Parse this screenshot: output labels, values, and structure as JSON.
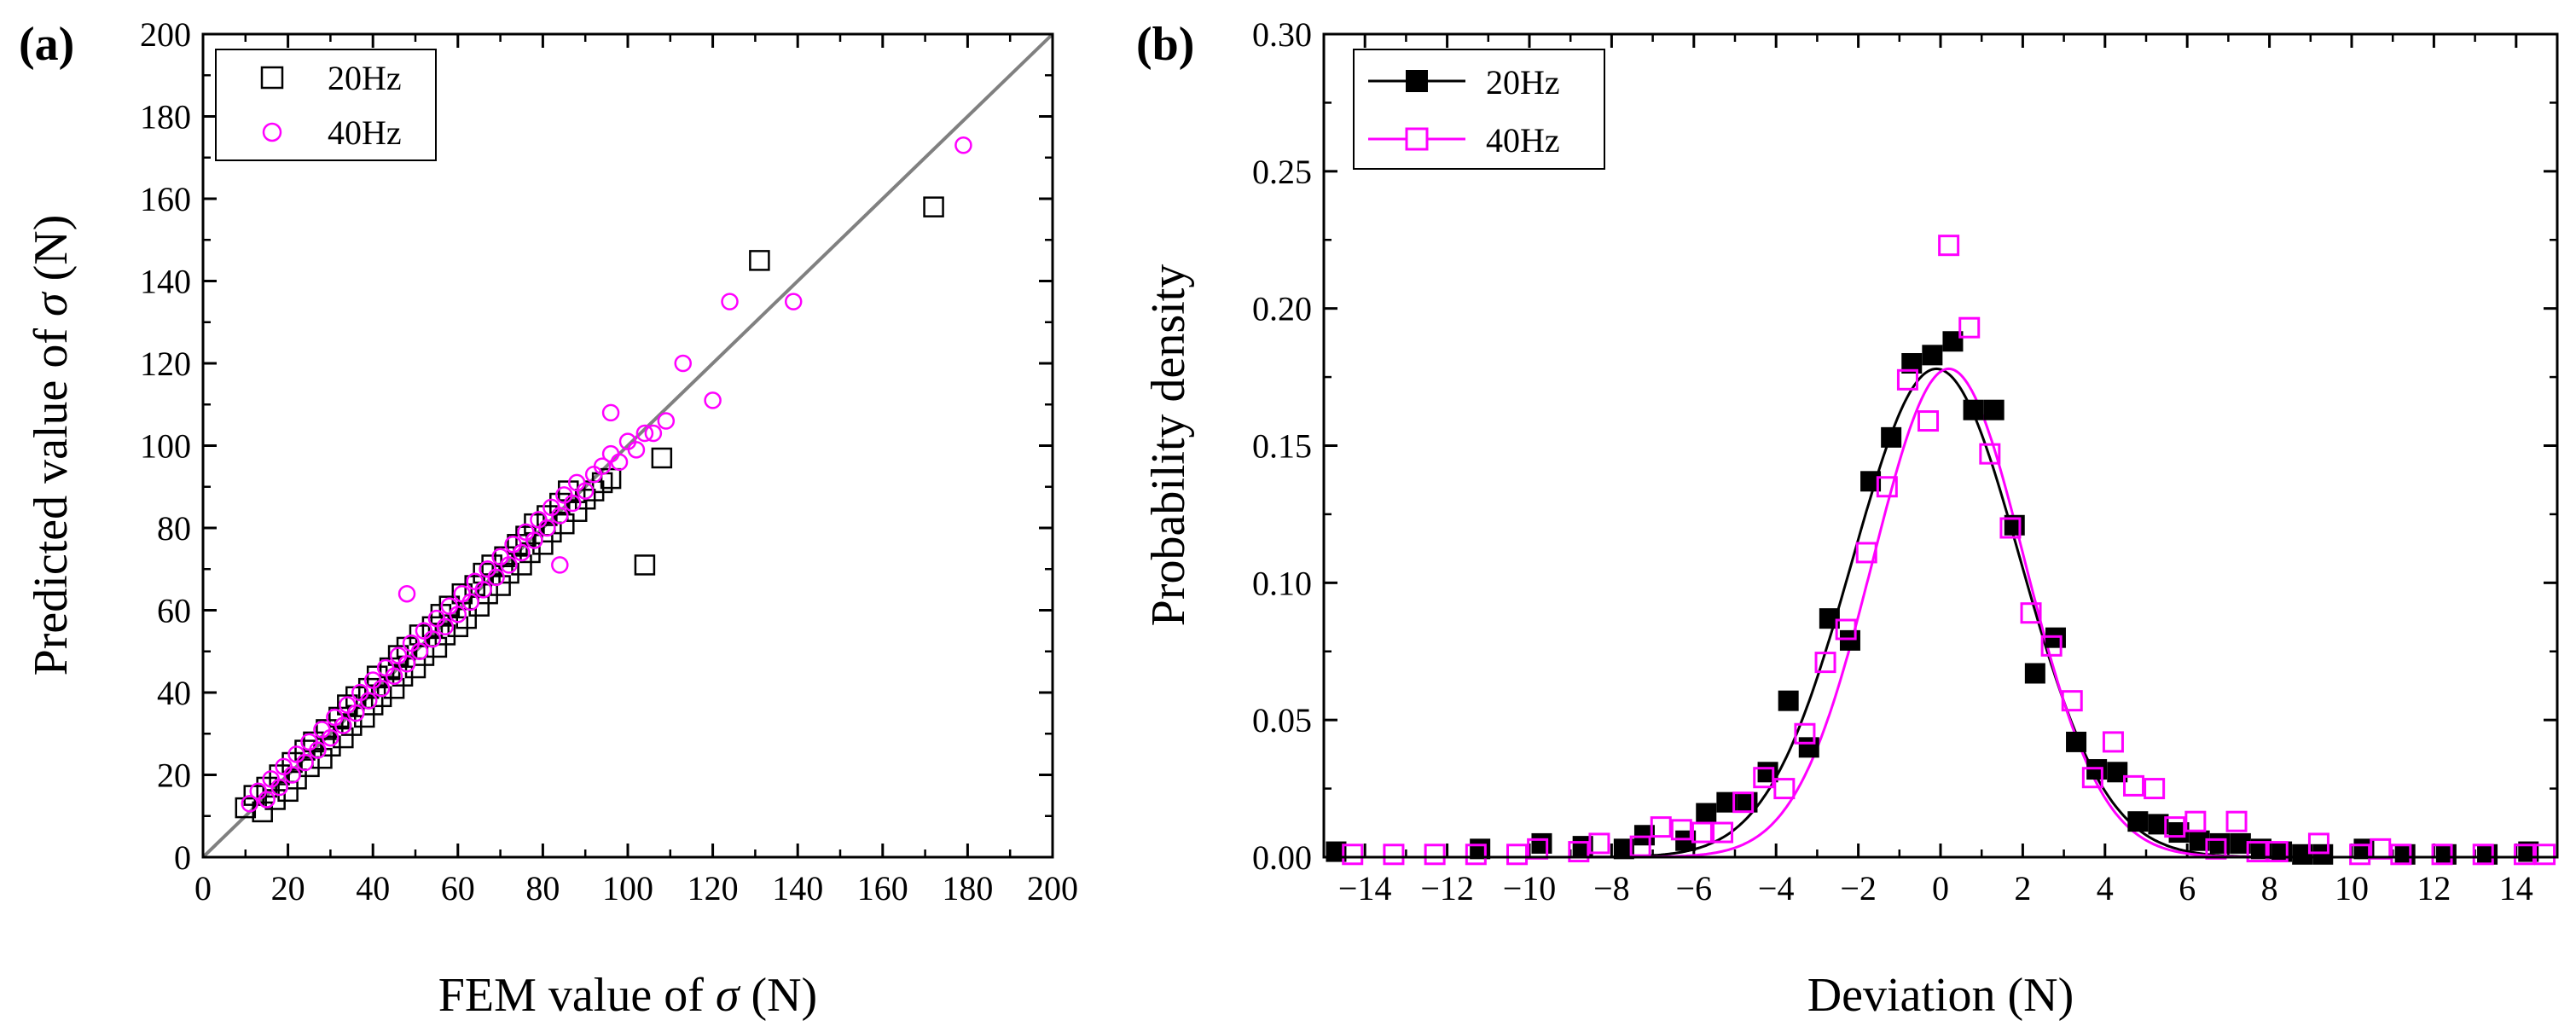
{
  "chart_data": [
    {
      "panel": "(a)",
      "type": "scatter",
      "xlabel": "FEM value of σ (N)",
      "xlabel_prefix": "FEM value of ",
      "xlabel_symbol": "σ",
      "xlabel_suffix": " (N)",
      "ylabel": "Predicted value of σ (N)",
      "ylabel_prefix": "Predicted value of ",
      "ylabel_symbol": "σ",
      "ylabel_suffix": " (N)",
      "xlim": [
        0,
        200
      ],
      "ylim": [
        0,
        200
      ],
      "xticks": [
        "0",
        "20",
        "40",
        "60",
        "80",
        "100",
        "120",
        "140",
        "160",
        "180",
        "200"
      ],
      "yticks": [
        "0",
        "20",
        "40",
        "60",
        "80",
        "100",
        "120",
        "140",
        "160",
        "180",
        "200"
      ],
      "legend_position": "top-left",
      "reference_line": {
        "from": [
          0,
          0
        ],
        "to": [
          200,
          200
        ],
        "color": "#808080"
      },
      "series": [
        {
          "name": "20Hz",
          "marker": "open-square",
          "color": "#000000",
          "points": [
            [
              10,
              12
            ],
            [
              12,
              15
            ],
            [
              14,
              11
            ],
            [
              15,
              17
            ],
            [
              17,
              14
            ],
            [
              18,
              20
            ],
            [
              20,
              16
            ],
            [
              21,
              23
            ],
            [
              22,
              19
            ],
            [
              24,
              26
            ],
            [
              25,
              22
            ],
            [
              26,
              28
            ],
            [
              28,
              24
            ],
            [
              29,
              31
            ],
            [
              30,
              27
            ],
            [
              32,
              34
            ],
            [
              33,
              29
            ],
            [
              34,
              37
            ],
            [
              35,
              32
            ],
            [
              36,
              39
            ],
            [
              38,
              34
            ],
            [
              39,
              41
            ],
            [
              40,
              37
            ],
            [
              41,
              44
            ],
            [
              42,
              39
            ],
            [
              44,
              46
            ],
            [
              45,
              41
            ],
            [
              46,
              49
            ],
            [
              47,
              44
            ],
            [
              48,
              51
            ],
            [
              50,
              46
            ],
            [
              51,
              54
            ],
            [
              52,
              49
            ],
            [
              54,
              56
            ],
            [
              55,
              51
            ],
            [
              56,
              59
            ],
            [
              57,
              54
            ],
            [
              58,
              61
            ],
            [
              60,
              56
            ],
            [
              61,
              64
            ],
            [
              62,
              58
            ],
            [
              64,
              66
            ],
            [
              65,
              61
            ],
            [
              66,
              69
            ],
            [
              67,
              64
            ],
            [
              68,
              71
            ],
            [
              70,
              66
            ],
            [
              71,
              73
            ],
            [
              72,
              69
            ],
            [
              74,
              76
            ],
            [
              75,
              71
            ],
            [
              76,
              78
            ],
            [
              77,
              74
            ],
            [
              78,
              81
            ],
            [
              80,
              76
            ],
            [
              81,
              83
            ],
            [
              82,
              79
            ],
            [
              84,
              86
            ],
            [
              85,
              81
            ],
            [
              86,
              89
            ],
            [
              88,
              84
            ],
            [
              90,
              87
            ],
            [
              92,
              89
            ],
            [
              94,
              91
            ],
            [
              96,
              92
            ],
            [
              108,
              97
            ],
            [
              104,
              71
            ],
            [
              131,
              145
            ],
            [
              172,
              158
            ]
          ]
        },
        {
          "name": "40Hz",
          "marker": "open-circle",
          "color": "#ff00ff",
          "points": [
            [
              11,
              13
            ],
            [
              13,
              16
            ],
            [
              15,
              14
            ],
            [
              16,
              19
            ],
            [
              18,
              17
            ],
            [
              19,
              22
            ],
            [
              21,
              20
            ],
            [
              22,
              25
            ],
            [
              24,
              23
            ],
            [
              25,
              28
            ],
            [
              27,
              26
            ],
            [
              28,
              31
            ],
            [
              30,
              29
            ],
            [
              31,
              34
            ],
            [
              33,
              32
            ],
            [
              34,
              37
            ],
            [
              36,
              35
            ],
            [
              37,
              40
            ],
            [
              39,
              38
            ],
            [
              40,
              43
            ],
            [
              42,
              41
            ],
            [
              43,
              46
            ],
            [
              45,
              44
            ],
            [
              46,
              49
            ],
            [
              48,
              47
            ],
            [
              49,
              52
            ],
            [
              51,
              50
            ],
            [
              52,
              55
            ],
            [
              54,
              53
            ],
            [
              55,
              58
            ],
            [
              57,
              56
            ],
            [
              58,
              61
            ],
            [
              60,
              59
            ],
            [
              61,
              64
            ],
            [
              63,
              62
            ],
            [
              64,
              67
            ],
            [
              66,
              65
            ],
            [
              67,
              70
            ],
            [
              69,
              68
            ],
            [
              70,
              73
            ],
            [
              72,
              71
            ],
            [
              73,
              76
            ],
            [
              75,
              74
            ],
            [
              76,
              79
            ],
            [
              78,
              77
            ],
            [
              79,
              82
            ],
            [
              81,
              80
            ],
            [
              82,
              85
            ],
            [
              84,
              83
            ],
            [
              85,
              88
            ],
            [
              87,
              86
            ],
            [
              88,
              91
            ],
            [
              90,
              89
            ],
            [
              92,
              93
            ],
            [
              94,
              95
            ],
            [
              96,
              98
            ],
            [
              98,
              96
            ],
            [
              100,
              101
            ],
            [
              102,
              99
            ],
            [
              104,
              103
            ],
            [
              48,
              64
            ],
            [
              84,
              71
            ],
            [
              96,
              108
            ],
            [
              106,
              103
            ],
            [
              109,
              106
            ],
            [
              113,
              120
            ],
            [
              120,
              111
            ],
            [
              124,
              135
            ],
            [
              139,
              135
            ],
            [
              179,
              173
            ]
          ]
        }
      ]
    },
    {
      "panel": "(b)",
      "type": "line",
      "xlabel": "Deviation (N)",
      "ylabel": "Probability density",
      "xlim": [
        -15,
        15
      ],
      "ylim": [
        0,
        0.3
      ],
      "xticks": [
        "−14",
        "−12",
        "−10",
        "−8",
        "−6",
        "−4",
        "−2",
        "0",
        "2",
        "4",
        "6",
        "8",
        "10",
        "12",
        "14"
      ],
      "yticks": [
        "0.00",
        "0.05",
        "0.10",
        "0.15",
        "0.20",
        "0.25",
        "0.30"
      ],
      "legend_position": "top-left",
      "series": [
        {
          "name": "20Hz",
          "marker": "filled-square",
          "color": "#000000",
          "fit": {
            "type": "gaussian",
            "peak": 0.178,
            "center": -0.1,
            "sigma": 2.05
          },
          "points": [
            [
              -14.7,
              0.002
            ],
            [
              -11.2,
              0.003
            ],
            [
              -9.7,
              0.005
            ],
            [
              -8.7,
              0.004
            ],
            [
              -7.7,
              0.003
            ],
            [
              -7.2,
              0.008
            ],
            [
              -6.2,
              0.006
            ],
            [
              -5.7,
              0.016
            ],
            [
              -5.2,
              0.02
            ],
            [
              -4.7,
              0.02
            ],
            [
              -4.2,
              0.031
            ],
            [
              -3.7,
              0.057
            ],
            [
              -3.2,
              0.04
            ],
            [
              -2.7,
              0.087
            ],
            [
              -2.2,
              0.079
            ],
            [
              -1.7,
              0.137
            ],
            [
              -1.2,
              0.153
            ],
            [
              -0.7,
              0.18
            ],
            [
              -0.2,
              0.183
            ],
            [
              0.3,
              0.188
            ],
            [
              0.8,
              0.163
            ],
            [
              1.3,
              0.163
            ],
            [
              1.8,
              0.121
            ],
            [
              2.3,
              0.067
            ],
            [
              2.8,
              0.08
            ],
            [
              3.3,
              0.042
            ],
            [
              3.8,
              0.032
            ],
            [
              4.3,
              0.031
            ],
            [
              4.8,
              0.013
            ],
            [
              5.3,
              0.012
            ],
            [
              5.8,
              0.009
            ],
            [
              6.3,
              0.006
            ],
            [
              6.8,
              0.005
            ],
            [
              7.3,
              0.005
            ],
            [
              7.8,
              0.003
            ],
            [
              8.3,
              0.002
            ],
            [
              8.8,
              0.001
            ],
            [
              9.3,
              0.001
            ],
            [
              10.3,
              0.003
            ],
            [
              11.3,
              0.001
            ],
            [
              12.3,
              0.001
            ],
            [
              13.3,
              0.001
            ],
            [
              14.3,
              0.002
            ]
          ]
        },
        {
          "name": "40Hz",
          "marker": "open-square",
          "color": "#ff00ff",
          "fit": {
            "type": "gaussian",
            "peak": 0.178,
            "center": 0.2,
            "sigma": 1.85
          },
          "points": [
            [
              -14.3,
              0.001
            ],
            [
              -13.3,
              0.001
            ],
            [
              -12.3,
              0.001
            ],
            [
              -11.3,
              0.001
            ],
            [
              -10.3,
              0.001
            ],
            [
              -9.8,
              0.003
            ],
            [
              -8.8,
              0.002
            ],
            [
              -8.3,
              0.005
            ],
            [
              -7.3,
              0.004
            ],
            [
              -6.8,
              0.011
            ],
            [
              -6.3,
              0.01
            ],
            [
              -5.8,
              0.009
            ],
            [
              -5.3,
              0.009
            ],
            [
              -4.8,
              0.02
            ],
            [
              -4.3,
              0.029
            ],
            [
              -3.8,
              0.025
            ],
            [
              -3.3,
              0.045
            ],
            [
              -2.8,
              0.071
            ],
            [
              -2.3,
              0.083
            ],
            [
              -1.8,
              0.111
            ],
            [
              -1.3,
              0.135
            ],
            [
              -0.8,
              0.174
            ],
            [
              -0.3,
              0.159
            ],
            [
              0.2,
              0.223
            ],
            [
              0.7,
              0.193
            ],
            [
              1.2,
              0.147
            ],
            [
              1.7,
              0.12
            ],
            [
              2.2,
              0.089
            ],
            [
              2.7,
              0.077
            ],
            [
              3.2,
              0.057
            ],
            [
              3.7,
              0.029
            ],
            [
              4.2,
              0.042
            ],
            [
              4.7,
              0.026
            ],
            [
              5.2,
              0.025
            ],
            [
              5.7,
              0.011
            ],
            [
              6.2,
              0.013
            ],
            [
              6.7,
              0.003
            ],
            [
              7.2,
              0.013
            ],
            [
              7.7,
              0.002
            ],
            [
              8.2,
              0.002
            ],
            [
              9.2,
              0.005
            ],
            [
              10.2,
              0.001
            ],
            [
              10.7,
              0.003
            ],
            [
              11.2,
              0.001
            ],
            [
              12.2,
              0.001
            ],
            [
              13.2,
              0.001
            ],
            [
              14.2,
              0.001
            ],
            [
              14.7,
              0.001
            ]
          ]
        }
      ]
    }
  ]
}
